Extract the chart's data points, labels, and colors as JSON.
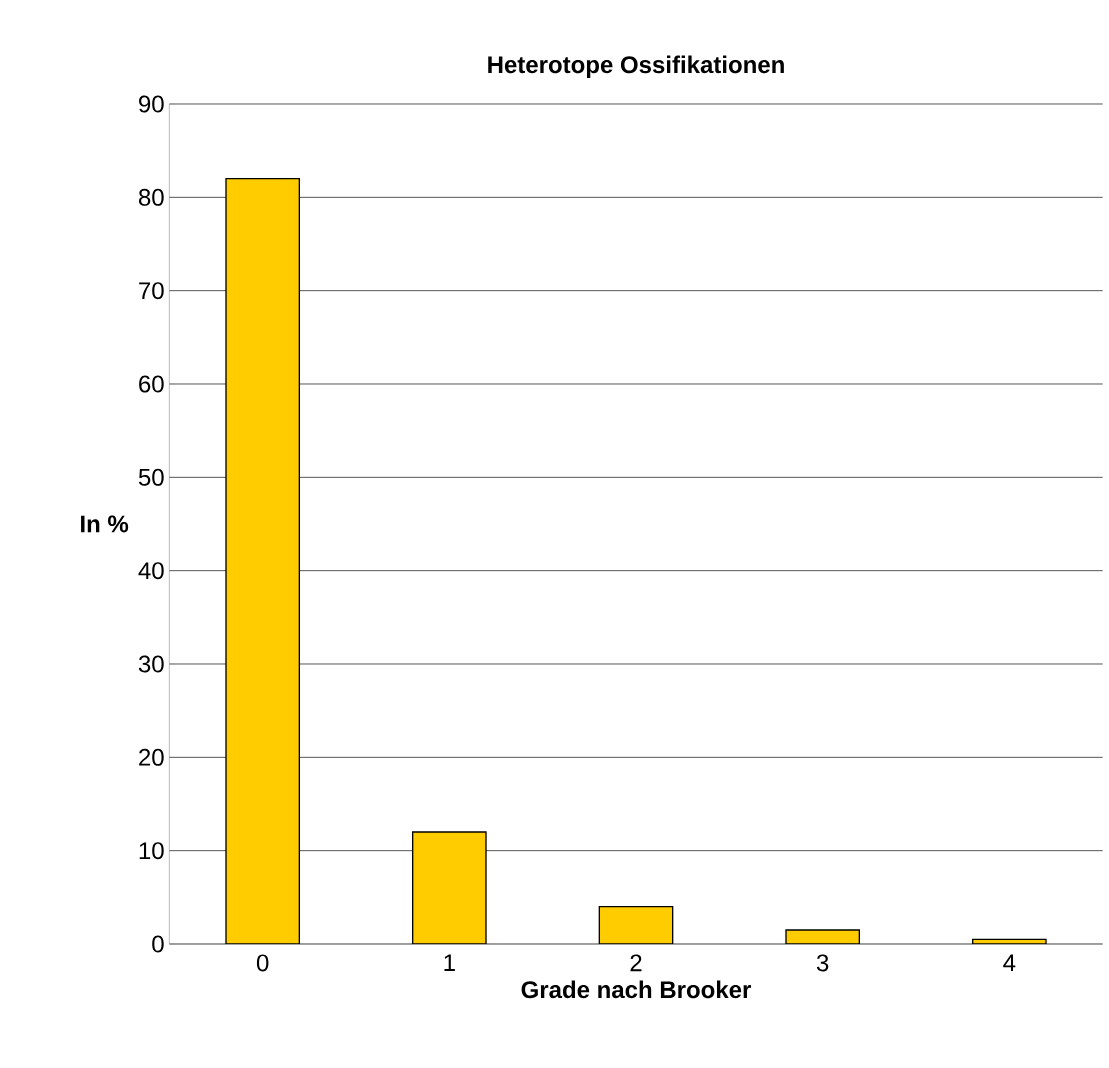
{
  "chart_data": {
    "type": "bar",
    "title": "Heterotope Ossifikationen",
    "xlabel": "Grade nach Brooker",
    "ylabel": "In %",
    "categories": [
      "0",
      "1",
      "2",
      "3",
      "4"
    ],
    "values": [
      82,
      12,
      4,
      1.5,
      0.5
    ],
    "color": "#ffcc00",
    "ylim": [
      0,
      90
    ],
    "yticks": [
      0,
      10,
      20,
      30,
      40,
      50,
      60,
      70,
      80,
      90
    ],
    "grid": "y"
  }
}
